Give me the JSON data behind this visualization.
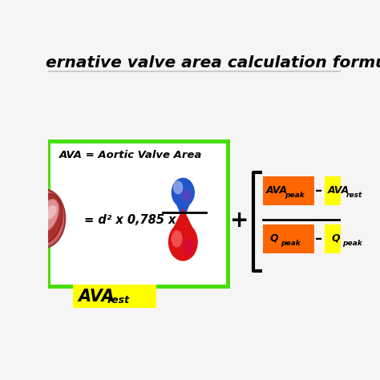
{
  "bg_color": "#f5f5f5",
  "title_text": "ernative valve area calculation formu",
  "title_color": "#000000",
  "green_box_color": "#44dd00",
  "yellow_box_color": "#ffff00",
  "orange_color": "#ff6600",
  "ava_label": "AVA = Aortic Valve Area",
  "formula_text": "= d² x 0,785 x",
  "ava_rest_main": "AVA",
  "ava_rest_sub": "rest",
  "numerator_left_main": "AVA",
  "numerator_left_sub": "peak",
  "numerator_right_main": "AVA",
  "numerator_right_sub": "rest",
  "denom_left_main": "Q",
  "denom_left_sub": "peak",
  "denom_right_main": "Q",
  "denom_right_sub": "peak",
  "minus": "–"
}
